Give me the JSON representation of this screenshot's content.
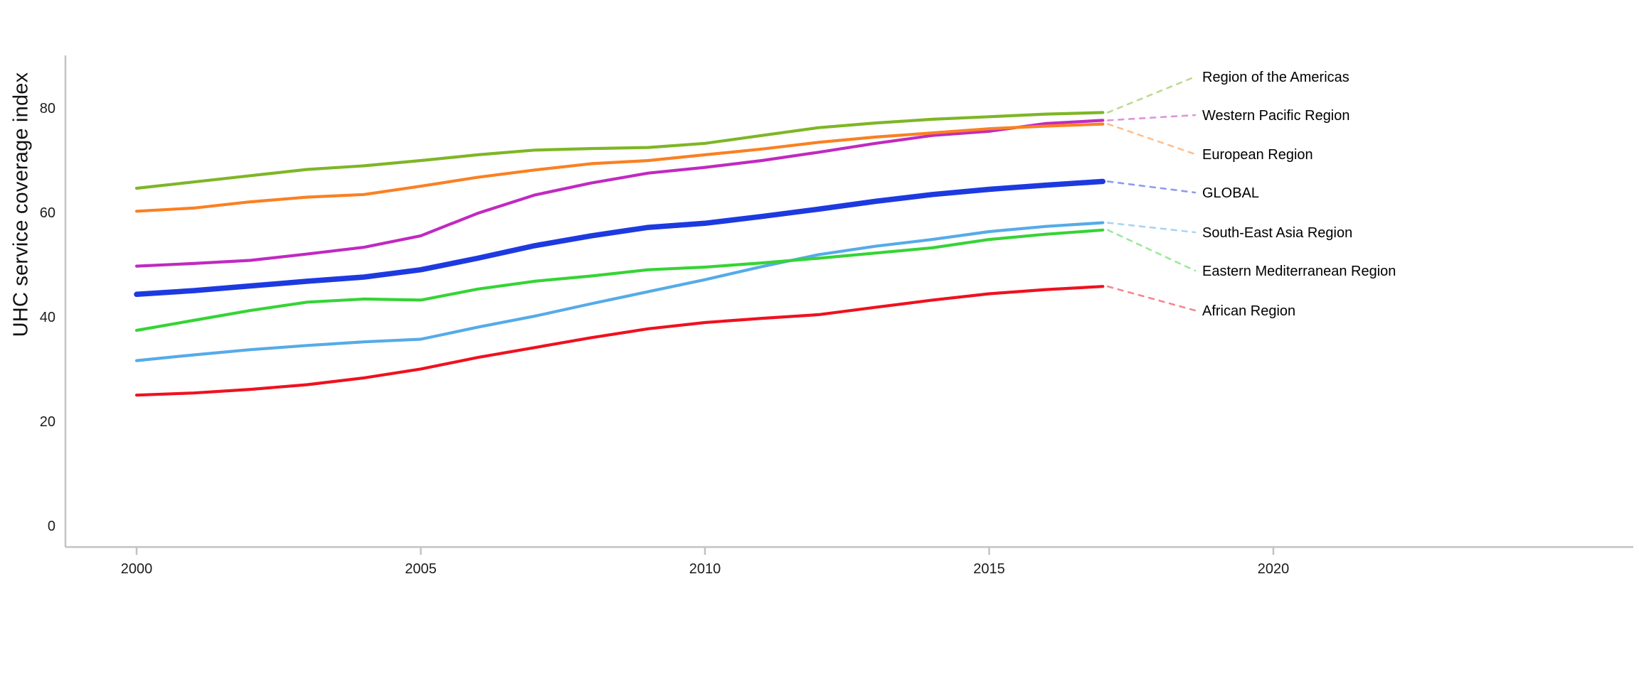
{
  "page": {
    "background": "#ffffff"
  },
  "chart_data": {
    "type": "line",
    "title": "",
    "ylabel": "UHC service coverage index",
    "xlabel": "",
    "grid": false,
    "legend_position": "right-edge-labels-with-dashed-leaders",
    "x": [
      2000,
      2001,
      2002,
      2003,
      2004,
      2005,
      2006,
      2007,
      2008,
      2009,
      2010,
      2011,
      2012,
      2013,
      2014,
      2015,
      2016,
      2017
    ],
    "x_ticks": [
      2000,
      2005,
      2010,
      2015,
      2020
    ],
    "y_ticks": [
      0,
      20,
      40,
      60,
      80
    ],
    "xlim": [
      1998.7,
      2026.5
    ],
    "ylim": [
      0,
      91
    ],
    "axis_color": "#c2c2c2",
    "text_color": "#1c1c1c",
    "series": [
      {
        "name": "Region of the Americas",
        "color": "#7eb626",
        "line_width": 4.2,
        "values": [
          64.6,
          65.8,
          67.0,
          68.2,
          68.9,
          69.9,
          71.0,
          71.9,
          72.2,
          72.4,
          73.2,
          74.7,
          76.2,
          77.1,
          77.8,
          78.3,
          78.8,
          79.1
        ]
      },
      {
        "name": "Western Pacific Region",
        "color": "#c129c1",
        "line_width": 4.2,
        "values": [
          49.7,
          50.2,
          50.8,
          52.0,
          53.3,
          55.5,
          59.8,
          63.3,
          65.6,
          67.5,
          68.6,
          69.9,
          71.5,
          73.2,
          74.7,
          75.5,
          77.0,
          77.6
        ]
      },
      {
        "name": "European Region",
        "color": "#fb8022",
        "line_width": 4.2,
        "values": [
          60.2,
          60.8,
          62.0,
          62.9,
          63.4,
          65.0,
          66.7,
          68.1,
          69.3,
          69.9,
          71.0,
          72.1,
          73.4,
          74.4,
          75.2,
          76.0,
          76.5,
          76.9
        ]
      },
      {
        "name": "GLOBAL",
        "color": "#1d3ae0",
        "line_width": 7.5,
        "values": [
          44.3,
          45.0,
          45.9,
          46.8,
          47.6,
          49.0,
          51.2,
          53.6,
          55.5,
          57.1,
          57.9,
          59.2,
          60.6,
          62.1,
          63.4,
          64.4,
          65.2,
          65.9
        ]
      },
      {
        "name": "South-East Asia Region",
        "color": "#55abe8",
        "line_width": 4.2,
        "values": [
          31.6,
          32.7,
          33.7,
          34.5,
          35.2,
          35.7,
          38.0,
          40.1,
          42.5,
          44.8,
          47.1,
          49.6,
          51.9,
          53.5,
          54.8,
          56.3,
          57.3,
          58.0
        ]
      },
      {
        "name": "Eastern Mediterranean Region",
        "color": "#35d435",
        "line_width": 4.2,
        "values": [
          37.4,
          39.3,
          41.2,
          42.8,
          43.4,
          43.2,
          45.3,
          46.8,
          47.8,
          49.0,
          49.5,
          50.3,
          51.2,
          52.2,
          53.2,
          54.8,
          55.8,
          56.6
        ]
      },
      {
        "name": "African Region",
        "color": "#ef111f",
        "line_width": 4.2,
        "values": [
          25.0,
          25.4,
          26.1,
          27.0,
          28.3,
          30.0,
          32.2,
          34.1,
          36.0,
          37.7,
          38.9,
          39.7,
          40.4,
          41.8,
          43.2,
          44.4,
          45.2,
          45.8
        ]
      }
    ]
  }
}
